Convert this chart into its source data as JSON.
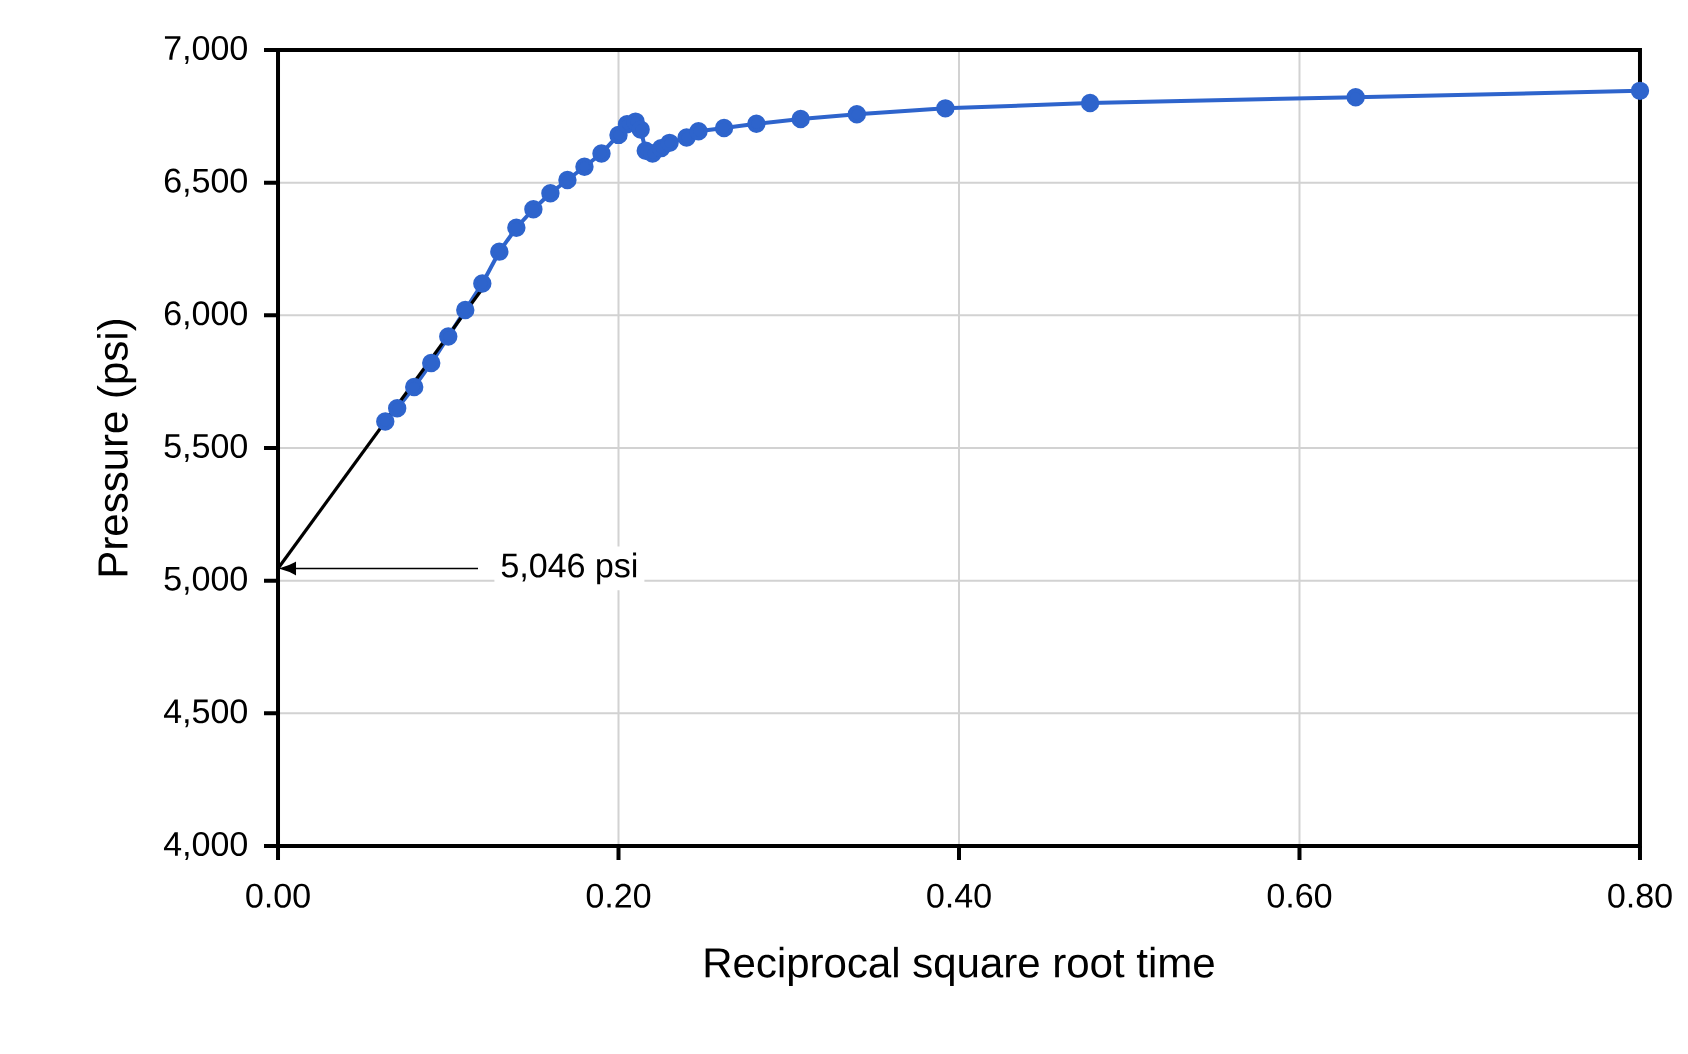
{
  "chart_data": {
    "type": "line",
    "xlabel": "Reciprocal square root time",
    "ylabel": "Pressure (psi)",
    "xlim": [
      0,
      0.8
    ],
    "ylim": [
      4000,
      7000
    ],
    "xticks": [
      {
        "value": 0,
        "label": "0.00"
      },
      {
        "value": 0.2,
        "label": "0.20"
      },
      {
        "value": 0.4,
        "label": "0.40"
      },
      {
        "value": 0.6,
        "label": "0.60"
      },
      {
        "value": 0.8,
        "label": "0.80"
      }
    ],
    "yticks": [
      {
        "value": 4000,
        "label": "4,000"
      },
      {
        "value": 4500,
        "label": "4,500"
      },
      {
        "value": 5000,
        "label": "5,000"
      },
      {
        "value": 5500,
        "label": "5,500"
      },
      {
        "value": 6000,
        "label": "6,000"
      },
      {
        "value": 6500,
        "label": "6,500"
      },
      {
        "value": 7000,
        "label": "7,000"
      }
    ],
    "grid": true,
    "series": [
      {
        "color": "#2e64cc",
        "marker": "circle",
        "x": [
          0.063,
          0.07,
          0.08,
          0.09,
          0.1,
          0.11,
          0.12,
          0.13,
          0.14,
          0.15,
          0.16,
          0.17,
          0.18,
          0.19,
          0.2,
          0.205,
          0.21,
          0.213,
          0.216,
          0.22,
          0.225,
          0.23,
          0.24,
          0.247,
          0.262,
          0.281,
          0.307,
          0.34,
          0.392,
          0.477,
          0.633,
          0.8
        ],
        "values": [
          5600,
          5650,
          5730,
          5820,
          5920,
          6020,
          6120,
          6240,
          6330,
          6400,
          6460,
          6510,
          6560,
          6610,
          6680,
          6720,
          6730,
          6700,
          6620,
          6610,
          6630,
          6650,
          6670,
          6694,
          6706,
          6722,
          6740,
          6758,
          6780,
          6800,
          6822,
          6846
        ]
      },
      {
        "color": "#000000",
        "marker": "none",
        "x": [
          0,
          0.12
        ],
        "values": [
          5046,
          6100
        ]
      }
    ],
    "annotations": [
      {
        "text": "5,046 psi",
        "x": 0,
        "y": 5046
      }
    ]
  }
}
